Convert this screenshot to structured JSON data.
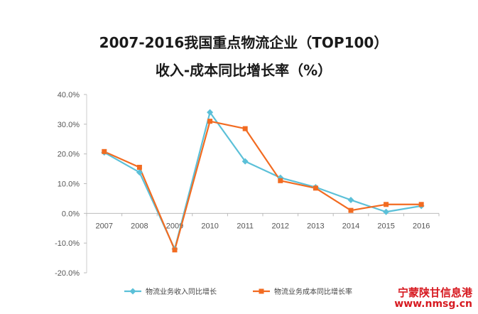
{
  "chart_data": {
    "type": "line",
    "title": "2007-2016我国重点物流企业（TOP100）",
    "subtitle": "收入-成本同比增长率（%）",
    "categories": [
      "2007",
      "2008",
      "2009",
      "2010",
      "2011",
      "2012",
      "2013",
      "2014",
      "2015",
      "2016"
    ],
    "series": [
      {
        "name": "物流业务收入同比增长",
        "color": "#5bc0d8",
        "marker": "diamond",
        "values": [
          20.5,
          13.8,
          -12.0,
          34.0,
          17.5,
          12.0,
          8.8,
          4.5,
          0.5,
          2.5
        ]
      },
      {
        "name": "物流业务成本同比增长率",
        "color": "#f26b21",
        "marker": "square",
        "values": [
          20.8,
          15.5,
          -12.3,
          31.0,
          28.5,
          11.0,
          8.5,
          1.0,
          3.0,
          3.0
        ]
      }
    ],
    "ylim": [
      -20,
      40
    ],
    "yticks": [
      "40.0%",
      "30.0%",
      "20.0%",
      "10.0%",
      "0.0%",
      "-10.0%",
      "-20.0%"
    ],
    "grid": false,
    "legend": "bottom"
  },
  "watermark": {
    "line1": "宁蒙陕甘信息港",
    "line2": "www.nmsg.cn"
  }
}
